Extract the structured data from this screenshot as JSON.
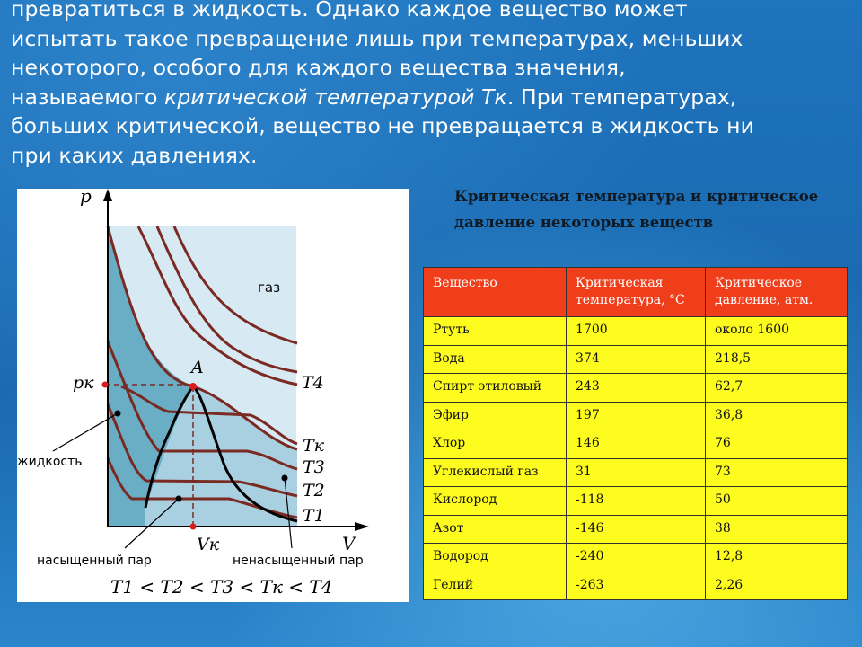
{
  "intro": {
    "line1": "превратиться в жидкость. Однако каждое вещество может",
    "line2": "испытать такое превращение лишь при температурах, меньших",
    "line3": "некоторого, особого для каждого вещества значения,",
    "line4_pre": "называемого ",
    "line4_term": "критической температурой Тк",
    "line4_post": ". При температурах,",
    "line5": "больших критической, вещество не превращается в жидкость ни",
    "line6": "при каких давлениях."
  },
  "diagram": {
    "axis_p": "p",
    "axis_v": "V",
    "label_pk": "pк",
    "label_vk": "Vк",
    "point_a": "A",
    "region_gas": "газ",
    "label_liquid": "жидкость",
    "label_saturated": "насыщенный пар",
    "label_unsaturated": "ненасыщенный пар",
    "iso_t4": "T4",
    "iso_tk": "Tк",
    "iso_t3": "T3",
    "iso_t2": "T2",
    "iso_t1": "T1",
    "inequality": "T1 < T2 < T3 < Tк < T4",
    "colors": {
      "gas_region": "#d7e9f3",
      "vapor_region": "#a9d0e0",
      "liquid_region": "#6aaec6",
      "isotherm": "#7a2a22",
      "dome": "#000000",
      "marker": "#d91c1c"
    }
  },
  "table": {
    "title": "Критическая температура и критическое давление некоторых веществ",
    "headers": [
      "Вещество",
      "Критическая температура, °С",
      "Критическое давление, атм."
    ],
    "rows": [
      [
        "Ртуть",
        "1700",
        "около 1600"
      ],
      [
        "Вода",
        "374",
        "218,5"
      ],
      [
        "Спирт этиловый",
        "243",
        "62,7"
      ],
      [
        "Эфир",
        "197",
        "36,8"
      ],
      [
        "Хлор",
        "146",
        "76"
      ],
      [
        "Углекислый газ",
        "31",
        "73"
      ],
      [
        "Кислород",
        "-118",
        "50"
      ],
      [
        "Азот",
        "-146",
        "38"
      ],
      [
        "Водород",
        "-240",
        "12,8"
      ],
      [
        "Гелий",
        "-263",
        "2,26"
      ]
    ],
    "colors": {
      "header_bg": "#f03e1b",
      "cell_bg": "#fdfc1e"
    }
  }
}
